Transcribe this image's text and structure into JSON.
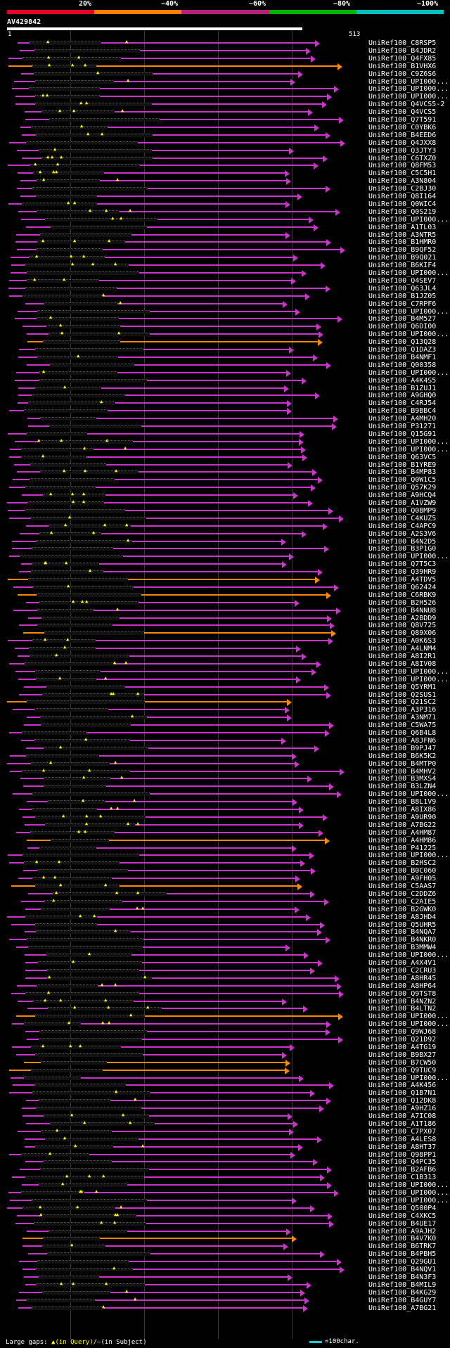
{
  "header": {
    "percent_labels": [
      "20%",
      "~40%",
      "~60%",
      "~80%",
      "~100%"
    ],
    "colors": [
      "#e60023",
      "#ff7f00",
      "#b6207d",
      "#00b400",
      "#00c0c0"
    ]
  },
  "query": {
    "name": "AV429842",
    "start": "1",
    "end": "513"
  },
  "colors": {
    "hit": "#cc33cc",
    "highlight": "#ff8800",
    "gap": "#ffff00",
    "scale": "#11cccc"
  },
  "hits": [
    "UniRef100_C8RSP5",
    "UniRef100_B4JDR2",
    "UniRef100_Q4FX85",
    "UniRef100_B1VHX6",
    "UniRef100_C9Z6S6",
    "UniRef100_UPI000...",
    "UniRef100_UPI000...",
    "UniRef100_UPI000...",
    "UniRef100_Q4VCS5-2",
    "UniRef100_Q4VCS5",
    "UniRef100_Q7T591",
    "UniRef100_C0YBK6",
    "UniRef100_B4EED6",
    "UniRef100_Q4JXX8",
    "UniRef100_Q3JTY3",
    "UniRef100_C6TXZ0",
    "UniRef100_Q8FM53",
    "UniRef100_C5C5H1",
    "UniRef100_A3N804",
    "UniRef100_C2BJ30",
    "UniRef100_Q8I164",
    "UniRef100_Q0WIC4",
    "UniRef100_Q0S219",
    "UniRef100_UPI000...",
    "UniRef100_A1TL03",
    "UniRef100_A3NTR5",
    "UniRef100_B1HMR0",
    "UniRef100_B9QF52",
    "UniRef100_B9Q021",
    "UniRef100_B6KIF4",
    "UniRef100_UPI000...",
    "UniRef100_Q4SEV7",
    "UniRef100_Q63JL4",
    "UniRef100_B1JZ05",
    "UniRef100_C7RPF6",
    "UniRef100_UPI000...",
    "UniRef100_B4M527",
    "UniRef100_Q6DI00",
    "UniRef100_UPI000...",
    "UniRef100_Q13Q28",
    "UniRef100_Q1DAZ3",
    "UniRef100_B4NMF1",
    "UniRef100_Q00358",
    "UniRef100_UPI000...",
    "UniRef100_A4K4S5",
    "UniRef100_B1ZUJ1",
    "UniRef100_A9GHQ0",
    "UniRef100_C4RJ54",
    "UniRef100_B9BBC4",
    "UniRef100_A4MH20",
    "UniRef100_P31271",
    "UniRef100_Q15G91",
    "UniRef100_UPI000...",
    "UniRef100_UPI000...",
    "UniRef100_Q63VC5",
    "UniRef100_B1YRE9",
    "UniRef100_B4MP83",
    "UniRef100_Q0W1C5",
    "UniRef100_Q57K29",
    "UniRef100_A9HCQ4",
    "UniRef100_A1VZW9",
    "UniRef100_Q0BMP9",
    "UniRef100_C4KUZ5",
    "UniRef100_C4APC9",
    "UniRef100_A2S3V6",
    "UniRef100_B4N2D5",
    "UniRef100_B3P1G0",
    "UniRef100_UPI000...",
    "UniRef100_Q7T5C3",
    "UniRef100_Q39HR9",
    "UniRef100_A4TDV5",
    "UniRef100_Q62424",
    "UniRef100_C6RBK9",
    "UniRef100_B2H526",
    "UniRef100_B4NNU8",
    "UniRef100_A2BDD9",
    "UniRef100_Q8V725",
    "UniRef100_Q89X06",
    "UniRef100_A0K6S3",
    "UniRef100_A4LNM4",
    "UniRef100_A8I2R1",
    "UniRef100_A8IV08",
    "UniRef100_UPI000...",
    "UniRef100_UPI000...",
    "UniRef100_Q5YRM1",
    "UniRef100_Q2SUS1",
    "UniRef100_Q21SC2",
    "UniRef100_A3P316",
    "UniRef100_A3NM71",
    "UniRef100_C5WA75",
    "UniRef100_Q6B4L8",
    "UniRef100_A8JFN6",
    "UniRef100_B9PJ47",
    "UniRef100_B6K5K2",
    "UniRef100_B4MTP0",
    "UniRef100_B4MHV2",
    "UniRef100_B3MXS4",
    "UniRef100_B3LZN4",
    "UniRef100_UPI000...",
    "UniRef100_B8L1V9",
    "UniRef100_A8IX86",
    "UniRef100_A9UR90",
    "UniRef100_A7BG22",
    "UniRef100_A4HM87",
    "UniRef100_A4HM86",
    "UniRef100_P41225",
    "UniRef100_UPI000...",
    "UniRef100_B2HSC2",
    "UniRef100_B0C060",
    "UniRef100_A9FH05",
    "UniRef100_C5AAS7",
    "UniRef100_C2DDZ6",
    "UniRef100_C2AIE5",
    "UniRef100_B2GWK0",
    "UniRef100_A8JHD4",
    "UniRef100_Q5UHR5",
    "UniRef100_B4NQA7",
    "UniRef100_B4NKR0",
    "UniRef100_B3MMW4",
    "UniRef100_UPI000...",
    "UniRef100_A4X4V1",
    "UniRef100_C2CRU3",
    "UniRef100_A8HR45",
    "UniRef100_A8HP64",
    "UniRef100_Q9TST8",
    "UniRef100_B4NZN2",
    "UniRef100_B4LTN2",
    "UniRef100_UPI000...",
    "UniRef100_UPI000...",
    "UniRef100_Q9WJ68",
    "UniRef100_Q21D92",
    "UniRef100_A4TG19",
    "UniRef100_B9BX27",
    "UniRef100_B7CW50",
    "UniRef100_Q9TUC9",
    "UniRef100_UPI000...",
    "UniRef100_A4K456",
    "UniRef100_Q1B7N1",
    "UniRef100_Q12DK8",
    "UniRef100_A9HZ16",
    "UniRef100_A7IC08",
    "UniRef100_A1T186",
    "UniRef100_C7PX07",
    "UniRef100_A4LES8",
    "UniRef100_A8HT37",
    "UniRef100_Q98PP1",
    "UniRef100_Q4PC35",
    "UniRef100_B2AFB6",
    "UniRef100_C1B313",
    "UniRef100_UPI000...",
    "UniRef100_UPI000...",
    "UniRef100_UPI000...",
    "UniRef100_Q500P4",
    "UniRef100_C4XKC5",
    "UniRef100_B4UE17",
    "UniRef100_A9AJH2",
    "UniRef100_B4V7K0",
    "UniRef100_B6TRK7",
    "UniRef100_B4PBH5",
    "UniRef100_Q29GU1",
    "UniRef100_B4NQV1",
    "UniRef100_B4N3F3",
    "UniRef100_B4MIL9",
    "UniRef100_B4KG29",
    "UniRef100_B4GUY7",
    "UniRef100_A7BG21"
  ],
  "legend": {
    "text_prefix": "Large gaps: ",
    "text_in_query": "▲(in Query)",
    "text_in_subject": "/—(in Subject)",
    "scale_label": "=100char."
  }
}
